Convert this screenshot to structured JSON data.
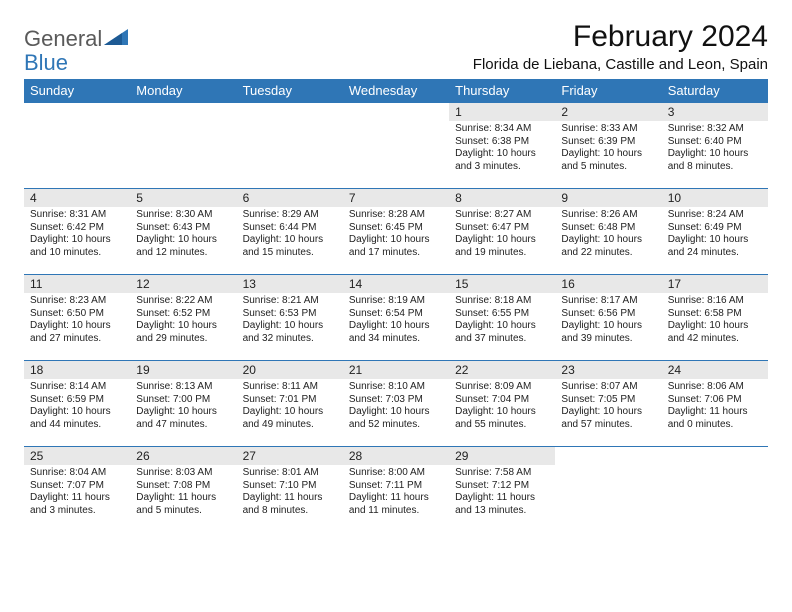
{
  "logo": {
    "part1": "General",
    "part2": "Blue"
  },
  "title": "February 2024",
  "location": "Florida de Liebana, Castille and Leon, Spain",
  "header_bg": "#2f76b6",
  "header_fg": "#ffffff",
  "daynum_bg": "#e8e8e8",
  "columns": [
    "Sunday",
    "Monday",
    "Tuesday",
    "Wednesday",
    "Thursday",
    "Friday",
    "Saturday"
  ],
  "weeks": [
    [
      null,
      null,
      null,
      null,
      {
        "n": "1",
        "sr": "8:34 AM",
        "ss": "6:38 PM",
        "dl": "10 hours and 3 minutes."
      },
      {
        "n": "2",
        "sr": "8:33 AM",
        "ss": "6:39 PM",
        "dl": "10 hours and 5 minutes."
      },
      {
        "n": "3",
        "sr": "8:32 AM",
        "ss": "6:40 PM",
        "dl": "10 hours and 8 minutes."
      }
    ],
    [
      {
        "n": "4",
        "sr": "8:31 AM",
        "ss": "6:42 PM",
        "dl": "10 hours and 10 minutes."
      },
      {
        "n": "5",
        "sr": "8:30 AM",
        "ss": "6:43 PM",
        "dl": "10 hours and 12 minutes."
      },
      {
        "n": "6",
        "sr": "8:29 AM",
        "ss": "6:44 PM",
        "dl": "10 hours and 15 minutes."
      },
      {
        "n": "7",
        "sr": "8:28 AM",
        "ss": "6:45 PM",
        "dl": "10 hours and 17 minutes."
      },
      {
        "n": "8",
        "sr": "8:27 AM",
        "ss": "6:47 PM",
        "dl": "10 hours and 19 minutes."
      },
      {
        "n": "9",
        "sr": "8:26 AM",
        "ss": "6:48 PM",
        "dl": "10 hours and 22 minutes."
      },
      {
        "n": "10",
        "sr": "8:24 AM",
        "ss": "6:49 PM",
        "dl": "10 hours and 24 minutes."
      }
    ],
    [
      {
        "n": "11",
        "sr": "8:23 AM",
        "ss": "6:50 PM",
        "dl": "10 hours and 27 minutes."
      },
      {
        "n": "12",
        "sr": "8:22 AM",
        "ss": "6:52 PM",
        "dl": "10 hours and 29 minutes."
      },
      {
        "n": "13",
        "sr": "8:21 AM",
        "ss": "6:53 PM",
        "dl": "10 hours and 32 minutes."
      },
      {
        "n": "14",
        "sr": "8:19 AM",
        "ss": "6:54 PM",
        "dl": "10 hours and 34 minutes."
      },
      {
        "n": "15",
        "sr": "8:18 AM",
        "ss": "6:55 PM",
        "dl": "10 hours and 37 minutes."
      },
      {
        "n": "16",
        "sr": "8:17 AM",
        "ss": "6:56 PM",
        "dl": "10 hours and 39 minutes."
      },
      {
        "n": "17",
        "sr": "8:16 AM",
        "ss": "6:58 PM",
        "dl": "10 hours and 42 minutes."
      }
    ],
    [
      {
        "n": "18",
        "sr": "8:14 AM",
        "ss": "6:59 PM",
        "dl": "10 hours and 44 minutes."
      },
      {
        "n": "19",
        "sr": "8:13 AM",
        "ss": "7:00 PM",
        "dl": "10 hours and 47 minutes."
      },
      {
        "n": "20",
        "sr": "8:11 AM",
        "ss": "7:01 PM",
        "dl": "10 hours and 49 minutes."
      },
      {
        "n": "21",
        "sr": "8:10 AM",
        "ss": "7:03 PM",
        "dl": "10 hours and 52 minutes."
      },
      {
        "n": "22",
        "sr": "8:09 AM",
        "ss": "7:04 PM",
        "dl": "10 hours and 55 minutes."
      },
      {
        "n": "23",
        "sr": "8:07 AM",
        "ss": "7:05 PM",
        "dl": "10 hours and 57 minutes."
      },
      {
        "n": "24",
        "sr": "8:06 AM",
        "ss": "7:06 PM",
        "dl": "11 hours and 0 minutes."
      }
    ],
    [
      {
        "n": "25",
        "sr": "8:04 AM",
        "ss": "7:07 PM",
        "dl": "11 hours and 3 minutes."
      },
      {
        "n": "26",
        "sr": "8:03 AM",
        "ss": "7:08 PM",
        "dl": "11 hours and 5 minutes."
      },
      {
        "n": "27",
        "sr": "8:01 AM",
        "ss": "7:10 PM",
        "dl": "11 hours and 8 minutes."
      },
      {
        "n": "28",
        "sr": "8:00 AM",
        "ss": "7:11 PM",
        "dl": "11 hours and 11 minutes."
      },
      {
        "n": "29",
        "sr": "7:58 AM",
        "ss": "7:12 PM",
        "dl": "11 hours and 13 minutes."
      },
      null,
      null
    ]
  ],
  "labels": {
    "sunrise": "Sunrise:",
    "sunset": "Sunset:",
    "daylight": "Daylight:"
  }
}
